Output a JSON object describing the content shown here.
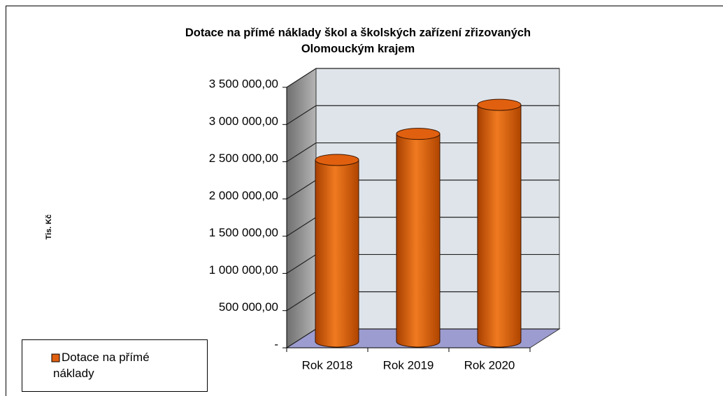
{
  "chart_data": {
    "type": "bar",
    "title": "Dotace na přímé náklady škol a školských zařízení zřizovaných Olomouckým krajem",
    "y_label": "Tis. Kč",
    "categories": [
      "Rok 2018",
      "Rok 2019",
      "Rok 2020"
    ],
    "series": [
      {
        "name": "Dotace na přímé náklady",
        "color": "#e0600f",
        "values": [
          2440000,
          2790000,
          3180000
        ]
      }
    ],
    "ylim": [
      0,
      3500000
    ],
    "yticks": [
      {
        "value": 0,
        "label": "-"
      },
      {
        "value": 500000,
        "label": "500 000,00"
      },
      {
        "value": 1000000,
        "label": "1 000 000,00"
      },
      {
        "value": 1500000,
        "label": "1 500 000,00"
      },
      {
        "value": 2000000,
        "label": "2 000 000,00"
      },
      {
        "value": 2500000,
        "label": "2 500 000,00"
      },
      {
        "value": 3000000,
        "label": "3 000 000,00"
      },
      {
        "value": 3500000,
        "label": "3 500 000,00"
      }
    ],
    "grid": true,
    "legend": "bottom-left"
  }
}
